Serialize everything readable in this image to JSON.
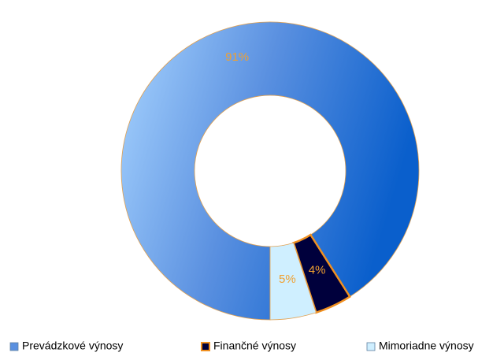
{
  "chart_data": {
    "type": "donut",
    "categories": [
      "Prevádzkové výnosy",
      "Finančné výnosy",
      "Mimoriadne výnosy"
    ],
    "values": [
      91,
      4,
      5
    ],
    "value_labels": [
      "91%",
      "4%",
      "5%"
    ],
    "colors": [
      "#4f86dc",
      "#00003c",
      "#cfefff"
    ],
    "legend": "bottom"
  }
}
